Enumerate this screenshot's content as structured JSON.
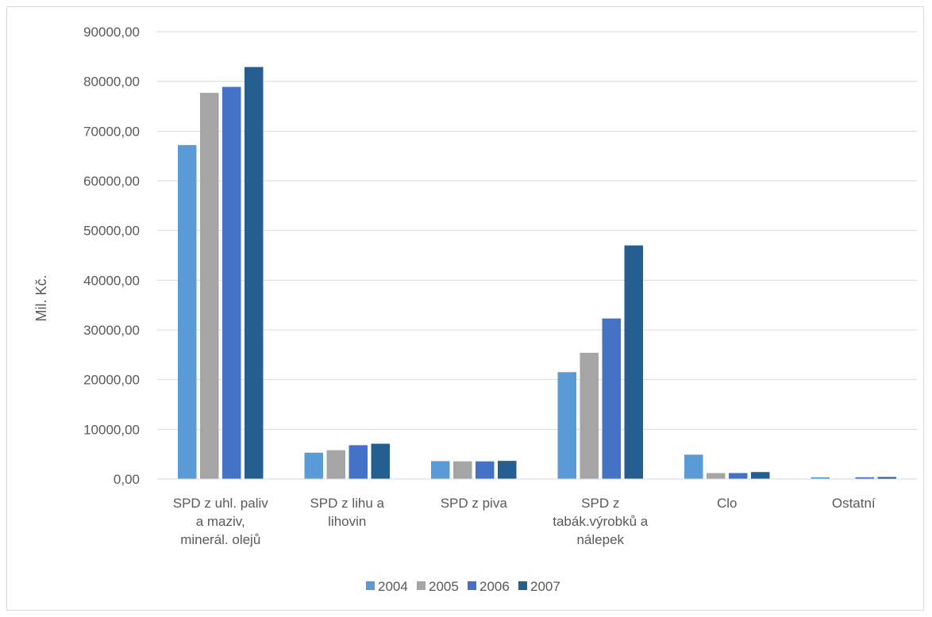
{
  "chart_data": {
    "type": "bar",
    "ylabel": "Mil. Kč.",
    "ylim": [
      0,
      90000
    ],
    "yticks": [
      "0,00",
      "10000,00",
      "20000,00",
      "30000,00",
      "40000,00",
      "50000,00",
      "60000,00",
      "70000,00",
      "80000,00",
      "90000,00"
    ],
    "grid": true,
    "legend_position": "bottom",
    "categories": [
      [
        "SPD z uhl. paliv",
        "a maziv,",
        "minerál. olejů"
      ],
      [
        "SPD z lihu a",
        "lihovin"
      ],
      [
        "SPD z piva"
      ],
      [
        "SPD z",
        "tabák.výrobků a",
        "nálepek"
      ],
      [
        "Clo"
      ],
      [
        "Ostatní"
      ]
    ],
    "series": [
      {
        "name": "2004",
        "color": "#5b9bd5",
        "values": [
          67200,
          5300,
          3600,
          21500,
          4900,
          350
        ]
      },
      {
        "name": "2005",
        "color": "#a5a5a5",
        "values": [
          77700,
          5800,
          3550,
          25400,
          1200,
          80
        ]
      },
      {
        "name": "2006",
        "color": "#4472c4",
        "values": [
          78900,
          6800,
          3550,
          32300,
          1200,
          350
        ]
      },
      {
        "name": "2007",
        "color": "#255e91",
        "values": [
          82900,
          7100,
          3650,
          47000,
          1400,
          400
        ]
      }
    ]
  }
}
